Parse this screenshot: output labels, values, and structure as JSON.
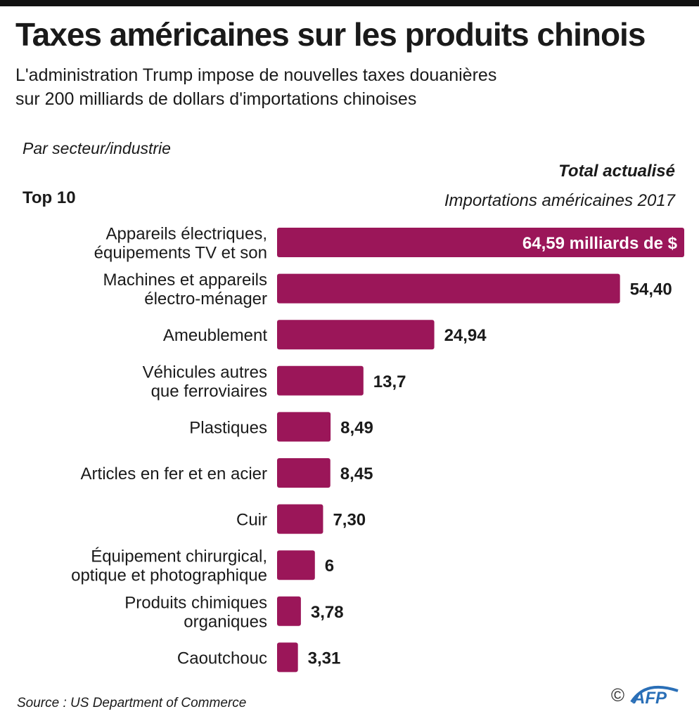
{
  "header": {
    "title": "Taxes américaines sur les produits chinois",
    "subtitle_line1": "L'administration Trump impose de nouvelles taxes douanières",
    "subtitle_line2": "sur 200 milliards de dollars d'importations chinoises",
    "by_sector": "Par secteur/industrie",
    "top10": "Top 10",
    "total_label": "Total actualisé",
    "imports_label": "Importations américaines 2017"
  },
  "footer": {
    "source": "Source  : US Department of Commerce",
    "copyright": "©",
    "logo_text": "AFP"
  },
  "colors": {
    "bar": "#9b1659",
    "text": "#1a1a1a",
    "label_inside": "#ffffff"
  },
  "chart_data": {
    "type": "bar",
    "orientation": "horizontal",
    "categories": [
      [
        "Appareils électriques,",
        "équipements TV et son"
      ],
      [
        "Machines et appareils",
        "électro-ménager"
      ],
      [
        "Ameublement"
      ],
      [
        "Véhicules autres",
        "que ferroviaires"
      ],
      [
        "Plastiques"
      ],
      [
        "Articles en fer et en acier"
      ],
      [
        "Cuir"
      ],
      [
        "Équipement  chirurgical,",
        "optique et photographique"
      ],
      [
        "Produits chimiques",
        "organiques"
      ],
      [
        "Caoutchouc"
      ]
    ],
    "values": [
      64.59,
      54.4,
      24.94,
      13.7,
      8.49,
      8.45,
      7.3,
      6,
      3.78,
      3.31
    ],
    "value_labels": [
      "64,59 milliards de $",
      "54,40",
      "24,94",
      "13,7",
      "8,49",
      "8,45",
      "7,30",
      "6",
      "3,78",
      "3,31"
    ],
    "unit": "milliards de $",
    "grid": false,
    "legend": "none"
  }
}
